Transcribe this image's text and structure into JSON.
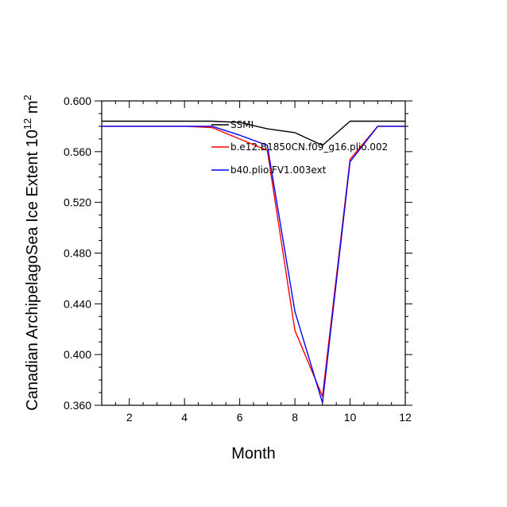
{
  "chart_data": {
    "type": "line",
    "xlabel": "Month",
    "ylabel": "Canadian ArchipelagoSea Ice Extent 10",
    "ylabel_exponent": "12",
    "ylabel_unit": " m",
    "ylabel_unit_exponent": "2",
    "xlim": [
      1,
      12
    ],
    "ylim": [
      0.36,
      0.6
    ],
    "xticks": [
      2,
      4,
      6,
      8,
      10,
      12
    ],
    "xtick_labels": [
      "2",
      "4",
      "6",
      "8",
      "10",
      "12"
    ],
    "yticks": [
      0.36,
      0.4,
      0.44,
      0.48,
      0.52,
      0.56,
      0.6
    ],
    "ytick_labels": [
      "0.360",
      "0.400",
      "0.440",
      "0.480",
      "0.520",
      "0.560",
      "0.600"
    ],
    "grid": false,
    "legend_position": "top-right",
    "x": [
      1,
      2,
      3,
      4,
      5,
      6,
      7,
      8,
      9,
      10,
      11,
      12
    ],
    "series": [
      {
        "name": "SSMI",
        "color": "#000000",
        "values": [
          0.584,
          0.584,
          0.584,
          0.584,
          0.584,
          0.583,
          0.578,
          0.575,
          0.565,
          0.584,
          0.584,
          0.584
        ]
      },
      {
        "name": "b.e12.B1850CN.f09_g16.plio.002",
        "color": "#ff0000",
        "values": [
          0.58,
          0.58,
          0.58,
          0.58,
          0.579,
          0.57,
          0.561,
          0.419,
          0.367,
          0.554,
          0.58,
          0.58
        ]
      },
      {
        "name": "b40.plio.FV1.003ext",
        "color": "#0000ff",
        "values": [
          0.58,
          0.58,
          0.58,
          0.58,
          0.58,
          0.573,
          0.565,
          0.434,
          0.362,
          0.552,
          0.58,
          0.58
        ]
      }
    ]
  }
}
